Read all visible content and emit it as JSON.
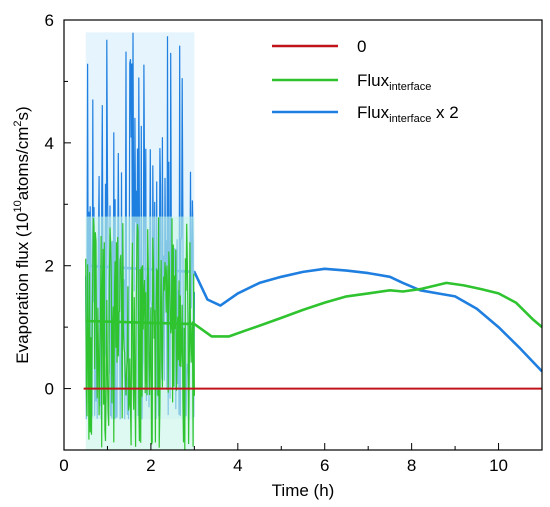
{
  "chart_data": {
    "type": "line",
    "title": "",
    "xlabel": "Time (h)",
    "ylabel": {
      "prefix": "Evaporation flux (10",
      "exp": "10",
      "mid": "atoms/cm",
      "sq": "2",
      "suffix": "s)"
    },
    "xlim": [
      0,
      11
    ],
    "ylim": [
      -1,
      6
    ],
    "xticks": [
      0,
      2,
      4,
      6,
      8,
      10
    ],
    "yticks": [
      0,
      2,
      4,
      6
    ],
    "legend_position": "top-right",
    "legend": [
      {
        "base": "0",
        "sub": "",
        "tail": ""
      },
      {
        "base": "Flux",
        "sub": "interface",
        "tail": ""
      },
      {
        "base": "Flux",
        "sub": "interface",
        "tail": " x 2"
      }
    ],
    "series": [
      {
        "color": "#c0141a",
        "x": [
          0.45,
          11.0
        ],
        "y": [
          0.0,
          0.0
        ]
      },
      {
        "color": "#2fc42f",
        "noisy": {
          "x_start": 0.5,
          "x_end": 3.0,
          "low": -1.0,
          "high": 2.8,
          "center": 1.05
        },
        "x": [
          0.5,
          3.0,
          3.4,
          3.8,
          4.2,
          4.6,
          5.0,
          5.5,
          6.0,
          6.5,
          7.0,
          7.5,
          7.8,
          8.2,
          8.5,
          8.8,
          9.2,
          9.6,
          10.0,
          10.4,
          10.8,
          11.0
        ],
        "y": [
          1.1,
          1.05,
          0.85,
          0.85,
          0.95,
          1.05,
          1.15,
          1.28,
          1.4,
          1.5,
          1.55,
          1.6,
          1.58,
          1.62,
          1.67,
          1.72,
          1.68,
          1.62,
          1.55,
          1.4,
          1.12,
          1.0
        ]
      },
      {
        "color": "#1f7fe0",
        "noisy": {
          "x_start": 0.5,
          "x_end": 3.0,
          "low": -0.5,
          "high": 5.8,
          "center": 1.9
        },
        "x": [
          0.5,
          3.0,
          3.3,
          3.6,
          4.0,
          4.5,
          5.0,
          5.5,
          6.0,
          6.5,
          7.0,
          7.5,
          7.8,
          8.2,
          8.6,
          9.0,
          9.5,
          10.0,
          10.5,
          11.0
        ],
        "y": [
          2.0,
          1.9,
          1.45,
          1.35,
          1.55,
          1.72,
          1.82,
          1.9,
          1.95,
          1.92,
          1.88,
          1.82,
          1.72,
          1.6,
          1.55,
          1.5,
          1.3,
          1.0,
          0.65,
          0.28
        ]
      }
    ]
  }
}
